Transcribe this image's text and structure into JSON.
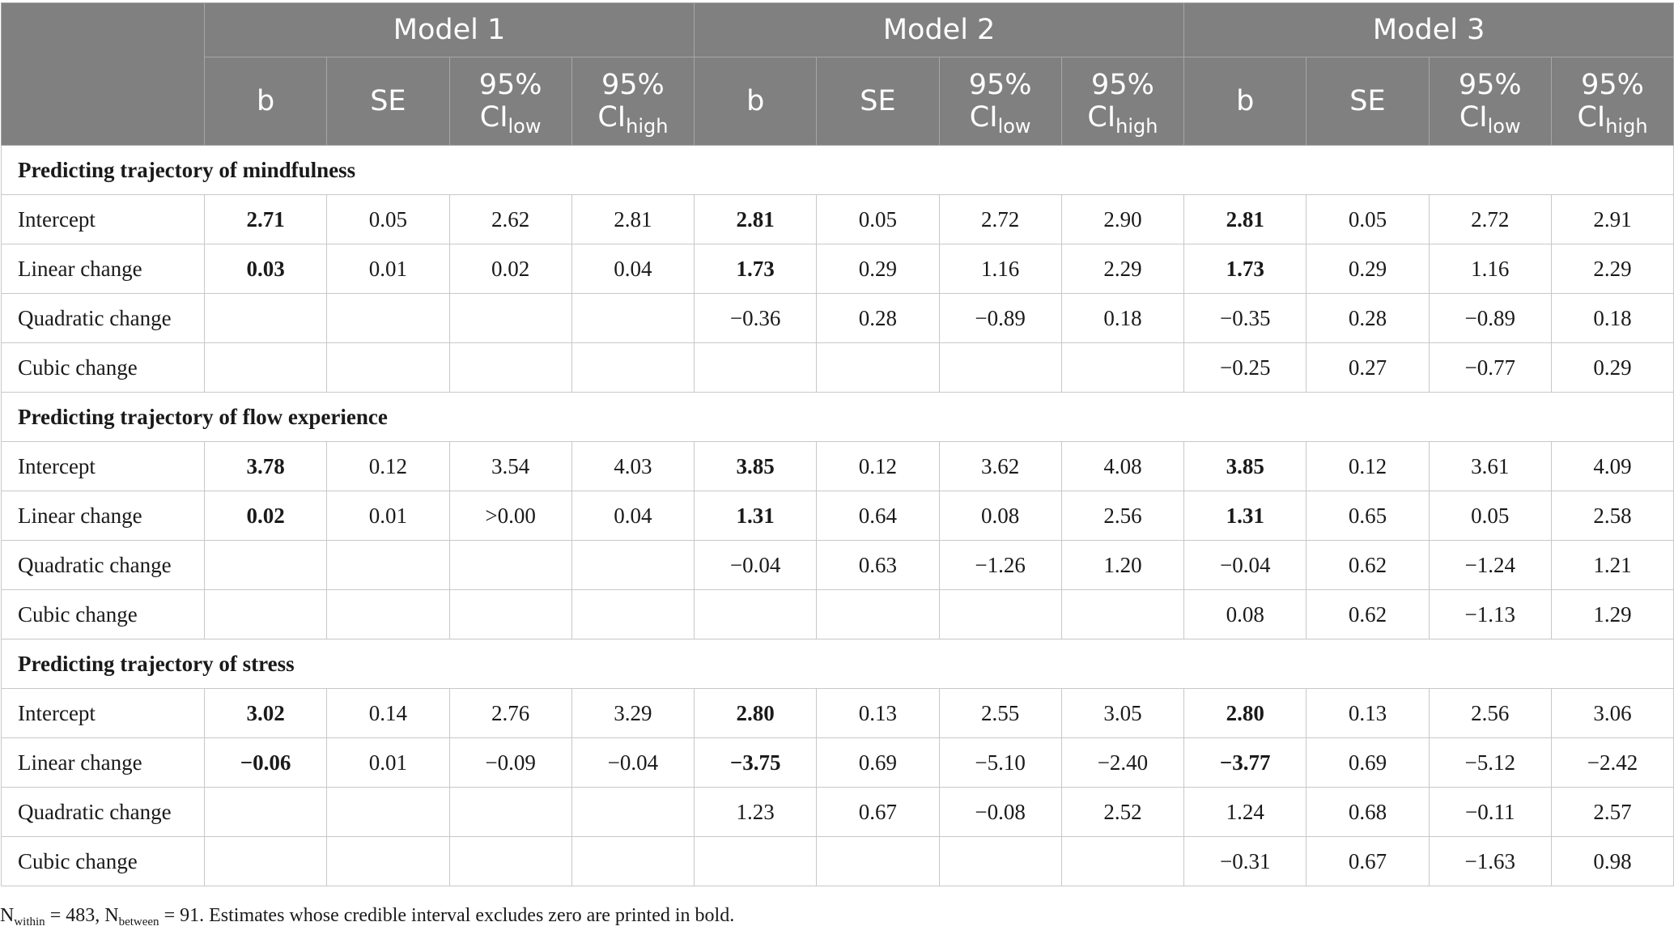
{
  "header": {
    "models": [
      "Model 1",
      "Model 2",
      "Model 3"
    ],
    "stats": {
      "b": "b",
      "se": "SE",
      "ci_prefix": "95%",
      "ci_base": "CI",
      "ci_low_sub": "low",
      "ci_high_sub": "high"
    }
  },
  "sections": [
    {
      "title": "Predicting trajectory of mindfulness",
      "rows": [
        {
          "label": "Intercept",
          "values": [
            "2.71",
            "0.05",
            "2.62",
            "2.81",
            "2.81",
            "0.05",
            "2.72",
            "2.90",
            "2.81",
            "0.05",
            "2.72",
            "2.91"
          ],
          "bold": [
            0,
            4,
            8
          ]
        },
        {
          "label": "Linear change",
          "values": [
            "0.03",
            "0.01",
            "0.02",
            "0.04",
            "1.73",
            "0.29",
            "1.16",
            "2.29",
            "1.73",
            "0.29",
            "1.16",
            "2.29"
          ],
          "bold": [
            0,
            4,
            8
          ]
        },
        {
          "label": "Quadratic change",
          "values": [
            "",
            "",
            "",
            "",
            "−0.36",
            "0.28",
            "−0.89",
            "0.18",
            "−0.35",
            "0.28",
            "−0.89",
            "0.18"
          ],
          "bold": []
        },
        {
          "label": "Cubic change",
          "values": [
            "",
            "",
            "",
            "",
            "",
            "",
            "",
            "",
            "−0.25",
            "0.27",
            "−0.77",
            "0.29"
          ],
          "bold": []
        }
      ]
    },
    {
      "title": "Predicting trajectory of flow experience",
      "rows": [
        {
          "label": "Intercept",
          "values": [
            "3.78",
            "0.12",
            "3.54",
            "4.03",
            "3.85",
            "0.12",
            "3.62",
            "4.08",
            "3.85",
            "0.12",
            "3.61",
            "4.09"
          ],
          "bold": [
            0,
            4,
            8
          ]
        },
        {
          "label": "Linear change",
          "values": [
            "0.02",
            "0.01",
            ">0.00",
            "0.04",
            "1.31",
            "0.64",
            "0.08",
            "2.56",
            "1.31",
            "0.65",
            "0.05",
            "2.58"
          ],
          "bold": [
            0,
            4,
            8
          ]
        },
        {
          "label": "Quadratic change",
          "values": [
            "",
            "",
            "",
            "",
            "−0.04",
            "0.63",
            "−1.26",
            "1.20",
            "−0.04",
            "0.62",
            "−1.24",
            "1.21"
          ],
          "bold": []
        },
        {
          "label": "Cubic change",
          "values": [
            "",
            "",
            "",
            "",
            "",
            "",
            "",
            "",
            "0.08",
            "0.62",
            "−1.13",
            "1.29"
          ],
          "bold": []
        }
      ]
    },
    {
      "title": "Predicting trajectory of stress",
      "rows": [
        {
          "label": "Intercept",
          "values": [
            "3.02",
            "0.14",
            "2.76",
            "3.29",
            "2.80",
            "0.13",
            "2.55",
            "3.05",
            "2.80",
            "0.13",
            "2.56",
            "3.06"
          ],
          "bold": [
            0,
            4,
            8
          ]
        },
        {
          "label": "Linear change",
          "values": [
            "−0.06",
            "0.01",
            "−0.09",
            "−0.04",
            "−3.75",
            "0.69",
            "−5.10",
            "−2.40",
            "−3.77",
            "0.69",
            "−5.12",
            "−2.42"
          ],
          "bold": [
            0,
            4,
            8
          ]
        },
        {
          "label": "Quadratic change",
          "values": [
            "",
            "",
            "",
            "",
            "1.23",
            "0.67",
            "−0.08",
            "2.52",
            "1.24",
            "0.68",
            "−0.11",
            "2.57"
          ],
          "bold": []
        },
        {
          "label": "Cubic change",
          "values": [
            "",
            "",
            "",
            "",
            "",
            "",
            "",
            "",
            "−0.31",
            "0.67",
            "−1.63",
            "0.98"
          ],
          "bold": []
        }
      ]
    }
  ],
  "note": {
    "n_within_base": "N",
    "n_within_sub": "within",
    "n_within_val": " = 483, ",
    "n_between_base": "N",
    "n_between_sub": "between",
    "n_between_val": " = 91. ",
    "text": "Estimates whose credible interval excludes zero are printed in bold."
  }
}
